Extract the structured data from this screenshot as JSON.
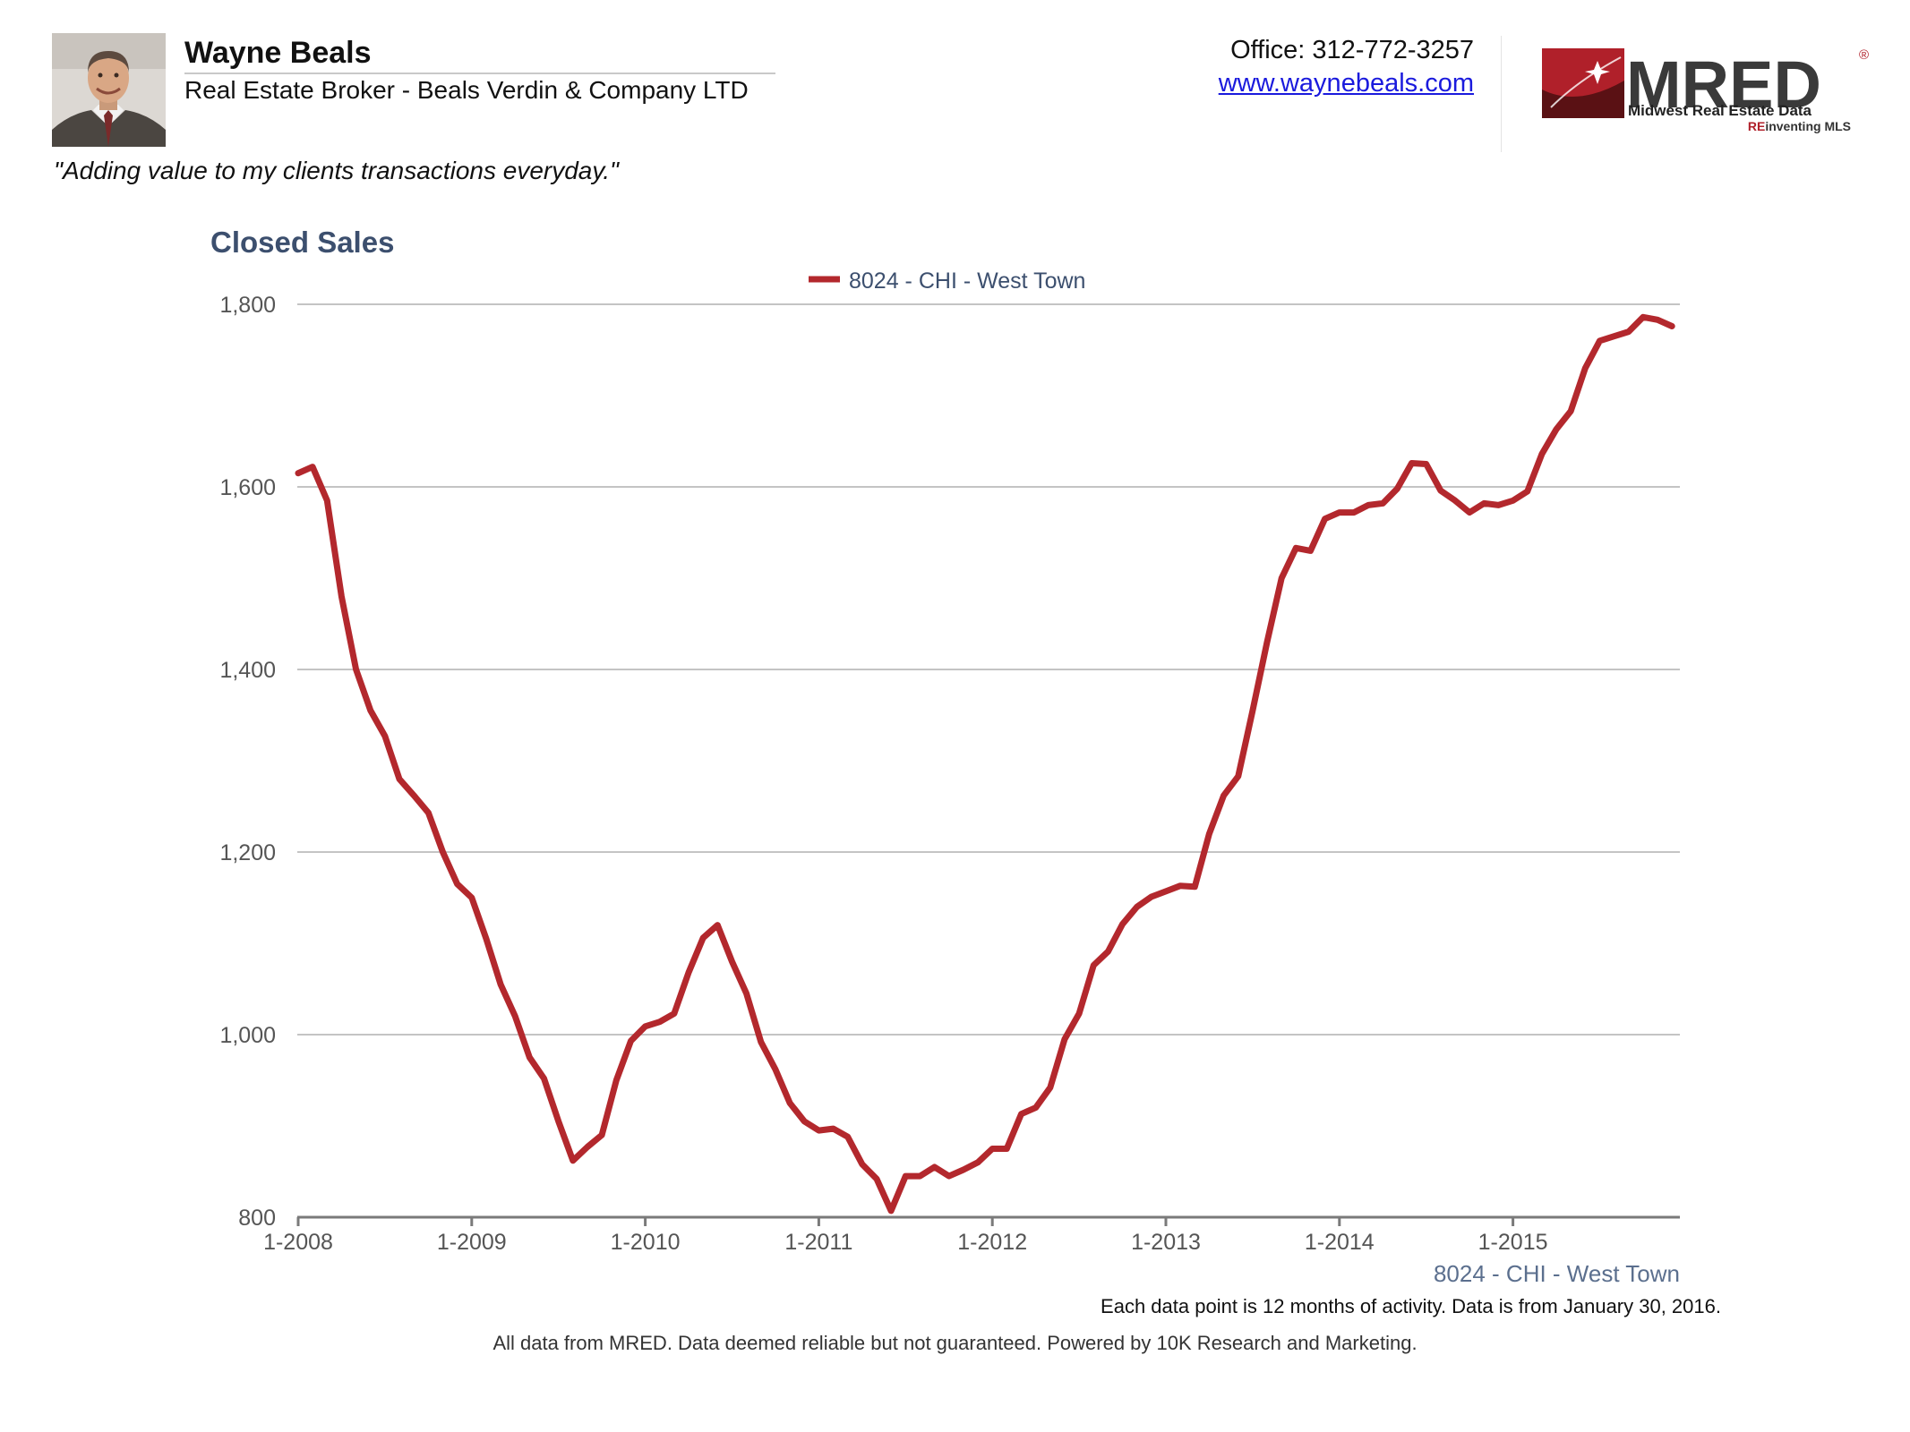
{
  "header": {
    "agent_name": "Wayne Beals",
    "agent_title": "Real Estate Broker - Beals Verdin & Company LTD",
    "tagline": "\"Adding value to my clients transactions everyday.\"",
    "office_phone": "Office: 312-772-3257",
    "website": "www.waynebeals.com",
    "logo": {
      "wordmark": "MRED",
      "registered": "®",
      "subtitle": "Midwest Real Estate Data",
      "tagline_prefix": "RE",
      "tagline_rest": "inventing MLS",
      "colors": {
        "mark_red": "#b0202a",
        "mark_dark": "#5a1114",
        "wordmark": "#3a3a3a"
      }
    }
  },
  "chart_data": {
    "type": "line",
    "title": "Closed Sales",
    "legend_position": "top-center",
    "grid": true,
    "x_tick_labels": [
      "1-2008",
      "1-2009",
      "1-2010",
      "1-2011",
      "1-2012",
      "1-2013",
      "1-2014",
      "1-2015"
    ],
    "y_tick_labels": [
      "800",
      "1,000",
      "1,200",
      "1,400",
      "1,600",
      "1,800"
    ],
    "ylim": [
      800,
      1800
    ],
    "x_start": "1-2008",
    "x_label_below": "8024 - CHI - West Town",
    "series": [
      {
        "name": "8024 - CHI - West Town",
        "color": "#b3282d",
        "values": [
          1615,
          1622,
          1585,
          1480,
          1400,
          1355,
          1327,
          1280,
          1262,
          1243,
          1200,
          1165,
          1150,
          1105,
          1055,
          1020,
          975,
          952,
          905,
          862,
          877,
          890,
          950,
          993,
          1009,
          1014,
          1023,
          1068,
          1106,
          1120,
          1080,
          1045,
          992,
          962,
          925,
          905,
          895,
          897,
          888,
          858,
          842,
          807,
          845,
          845,
          855,
          845,
          852,
          860,
          875,
          875,
          913,
          920,
          942,
          995,
          1023,
          1076,
          1091,
          1121,
          1140,
          1151,
          1157,
          1163,
          1162,
          1220,
          1262,
          1283,
          1355,
          1430,
          1500,
          1533,
          1530,
          1565,
          1572,
          1572,
          1580,
          1582,
          1598,
          1626,
          1625,
          1596,
          1585,
          1572,
          1582,
          1580,
          1585,
          1595,
          1636,
          1663,
          1683,
          1730,
          1760,
          1765,
          1770,
          1786,
          1783,
          1776
        ]
      }
    ]
  },
  "footer": {
    "footnote": "Each data point is 12 months of activity. Data is from January 30, 2016.",
    "disclaimer": "All data from MRED. Data deemed reliable but not guaranteed. Powered by 10K Research and Marketing."
  }
}
